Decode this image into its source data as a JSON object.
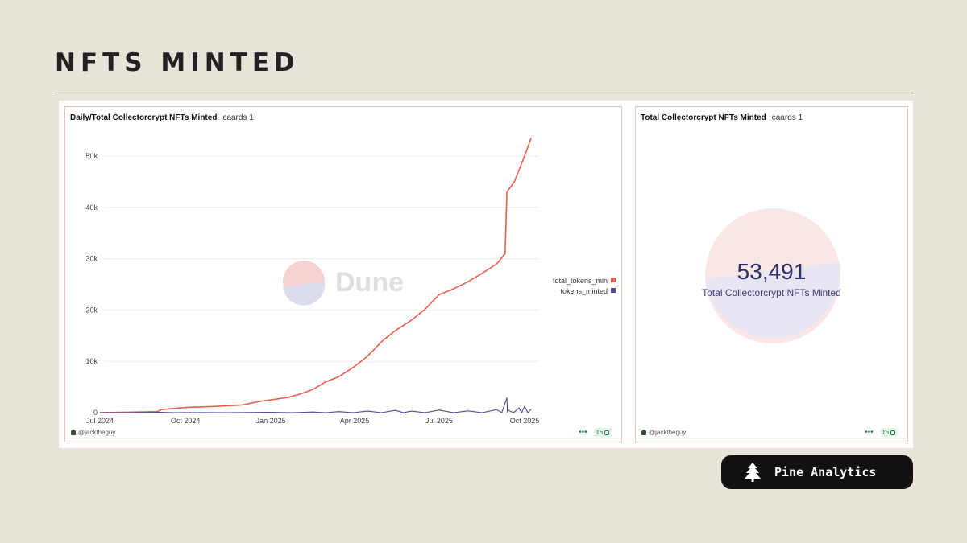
{
  "page": {
    "title": "NFTS MINTED"
  },
  "chart_data": [
    {
      "type": "line",
      "title": "Daily/Total Collectorcrypt NFTs Minted",
      "subtitle": "caards 1",
      "xlabel": "",
      "ylabel": "",
      "x_ticks": [
        "Jul 2024",
        "Oct 2024",
        "Jan 2025",
        "Apr 2025",
        "Jul 2025",
        "Oct 2025"
      ],
      "y_ticks": [
        "0",
        "10k",
        "20k",
        "30k",
        "40k",
        "50k"
      ],
      "ylim": [
        0,
        55000
      ],
      "grid": true,
      "legend_position": "right",
      "series": [
        {
          "name": "total_tokens_minted",
          "legend_label": "total_tokens_min",
          "color": "#e8604c",
          "points": [
            [
              "2024-07-01",
              0
            ],
            [
              "2024-08-01",
              100
            ],
            [
              "2024-09-01",
              200
            ],
            [
              "2024-09-05",
              600
            ],
            [
              "2024-10-01",
              1000
            ],
            [
              "2024-11-01",
              1200
            ],
            [
              "2024-12-01",
              1500
            ],
            [
              "2024-12-20",
              2200
            ],
            [
              "2025-01-01",
              2500
            ],
            [
              "2025-01-20",
              3000
            ],
            [
              "2025-02-01",
              3600
            ],
            [
              "2025-02-15",
              4500
            ],
            [
              "2025-03-01",
              6000
            ],
            [
              "2025-03-15",
              7000
            ],
            [
              "2025-04-01",
              9000
            ],
            [
              "2025-04-15",
              11000
            ],
            [
              "2025-05-01",
              14000
            ],
            [
              "2025-05-15",
              16000
            ],
            [
              "2025-06-01",
              18000
            ],
            [
              "2025-06-15",
              20000
            ],
            [
              "2025-07-01",
              23000
            ],
            [
              "2025-07-15",
              24000
            ],
            [
              "2025-08-01",
              25500
            ],
            [
              "2025-08-15",
              27000
            ],
            [
              "2025-09-01",
              29000
            ],
            [
              "2025-09-10",
              31000
            ],
            [
              "2025-09-12",
              43000
            ],
            [
              "2025-09-20",
              45000
            ],
            [
              "2025-10-01",
              50000
            ],
            [
              "2025-10-08",
              53491
            ]
          ]
        },
        {
          "name": "tokens_minted",
          "legend_label": "tokens_minted",
          "color": "#4c4a94",
          "points": [
            [
              "2024-07-01",
              0
            ],
            [
              "2024-09-05",
              80
            ],
            [
              "2024-10-01",
              20
            ],
            [
              "2025-01-01",
              60
            ],
            [
              "2025-02-15",
              120
            ],
            [
              "2025-03-15",
              200
            ],
            [
              "2025-04-15",
              300
            ],
            [
              "2025-05-15",
              450
            ],
            [
              "2025-06-01",
              300
            ],
            [
              "2025-07-01",
              500
            ],
            [
              "2025-08-01",
              350
            ],
            [
              "2025-09-01",
              600
            ],
            [
              "2025-09-12",
              2900
            ],
            [
              "2025-09-13",
              500
            ],
            [
              "2025-09-25",
              900
            ],
            [
              "2025-10-01",
              1200
            ],
            [
              "2025-10-08",
              700
            ]
          ]
        }
      ],
      "footer_user": "@jacktheguy",
      "refresh": "1h"
    },
    {
      "type": "counter",
      "title": "Total Collectorcrypt NFTs Minted",
      "subtitle": "caards 1",
      "value": "53,491",
      "label": "Total Collectorcrypt NFTs Minted",
      "footer_user": "@jacktheguy",
      "refresh": "1h"
    }
  ],
  "watermark": {
    "text": "Dune"
  },
  "brand": {
    "name": "Pine Analytics",
    "icon": "pine-tree-icon"
  }
}
